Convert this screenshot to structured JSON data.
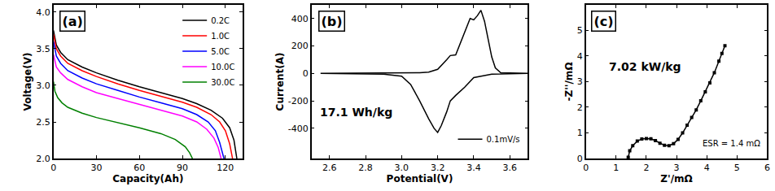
{
  "chart_data": [
    {
      "type": "line",
      "title": "(a)",
      "x_label": "Capacity(Ah)",
      "y_label": "Voltage(V)",
      "xlim": [
        0,
        132
      ],
      "xticks": [
        0,
        30,
        60,
        90,
        120
      ],
      "ylim": [
        2.0,
        4.1
      ],
      "yticks": [
        {
          "value": 2.0,
          "label": "2.0"
        },
        2.5,
        {
          "value": 3.0,
          "label": "3.0"
        },
        3.5,
        {
          "value": 4.0,
          "label": "4.0"
        }
      ],
      "grid": false,
      "legend": "upper right",
      "series": [
        {
          "name": "0.2C",
          "color": "#000000",
          "x": [
            0,
            2,
            5,
            10,
            20,
            30,
            45,
            60,
            75,
            90,
            100,
            110,
            118,
            123,
            126,
            128
          ],
          "values": [
            3.75,
            3.55,
            3.45,
            3.35,
            3.25,
            3.17,
            3.07,
            2.98,
            2.9,
            2.82,
            2.75,
            2.66,
            2.55,
            2.42,
            2.25,
            2.0
          ]
        },
        {
          "name": "1.0C",
          "color": "#ff0000",
          "x": [
            0,
            2,
            5,
            10,
            20,
            30,
            45,
            60,
            75,
            90,
            100,
            110,
            116,
            120,
            123,
            125
          ],
          "values": [
            3.7,
            3.5,
            3.4,
            3.3,
            3.2,
            3.12,
            3.02,
            2.93,
            2.85,
            2.77,
            2.7,
            2.6,
            2.5,
            2.38,
            2.2,
            2.0
          ]
        },
        {
          "name": "5.0C",
          "color": "#0000ff",
          "x": [
            0,
            2,
            5,
            10,
            20,
            30,
            45,
            60,
            75,
            90,
            100,
            108,
            113,
            116,
            119
          ],
          "values": [
            3.6,
            3.4,
            3.3,
            3.2,
            3.1,
            3.02,
            2.93,
            2.84,
            2.76,
            2.68,
            2.6,
            2.5,
            2.38,
            2.22,
            2.0
          ]
        },
        {
          "name": "10.0C",
          "color": "#ff00ff",
          "x": [
            0,
            2,
            5,
            10,
            20,
            30,
            45,
            60,
            75,
            90,
            100,
            107,
            112,
            115,
            117
          ],
          "values": [
            3.42,
            3.25,
            3.17,
            3.08,
            2.98,
            2.9,
            2.82,
            2.74,
            2.66,
            2.58,
            2.5,
            2.4,
            2.28,
            2.15,
            2.0
          ]
        },
        {
          "name": "30.0C",
          "color": "#008000",
          "x": [
            0,
            1,
            3,
            6,
            10,
            20,
            30,
            45,
            60,
            75,
            85,
            92,
            95,
            97
          ],
          "values": [
            3.05,
            2.92,
            2.83,
            2.76,
            2.7,
            2.62,
            2.56,
            2.49,
            2.42,
            2.34,
            2.26,
            2.16,
            2.08,
            2.0
          ]
        }
      ]
    },
    {
      "type": "line",
      "title": "(b)",
      "x_label": "Potential(V)",
      "y_label": "Current(A)",
      "xlim": [
        2.5,
        3.7
      ],
      "xticks": [
        2.6,
        2.8,
        {
          "value": 3.0,
          "label": "3.0"
        },
        3.2,
        3.4,
        3.6
      ],
      "ylim": [
        -620,
        500
      ],
      "yticks": [
        -400,
        -200,
        0,
        200,
        400
      ],
      "grid": false,
      "legend": "lower right",
      "annotations": [
        "17.1 Wh/kg"
      ],
      "series": [
        {
          "name": "0.1mV/s",
          "color": "#000000",
          "x": [
            2.55,
            2.9,
            3.1,
            3.15,
            3.2,
            3.25,
            3.27,
            3.3,
            3.32,
            3.35,
            3.38,
            3.4,
            3.42,
            3.44,
            3.46,
            3.48,
            3.5,
            3.52,
            3.55,
            3.7,
            3.5,
            3.4,
            3.35,
            3.3,
            3.27,
            3.25,
            3.22,
            3.2,
            3.18,
            3.15,
            3.1,
            3.05,
            3.0,
            2.9,
            2.55
          ],
          "values": [
            0,
            2,
            5,
            10,
            30,
            100,
            130,
            135,
            200,
            300,
            400,
            390,
            420,
            460,
            380,
            250,
            120,
            40,
            5,
            0,
            -5,
            -30,
            -100,
            -160,
            -200,
            -280,
            -380,
            -430,
            -400,
            -330,
            -200,
            -80,
            -20,
            -5,
            0
          ]
        }
      ]
    },
    {
      "type": "line",
      "title": "(c)",
      "x_label": "Z'/mΩ",
      "y_label": "-Z''/mΩ",
      "xlim": [
        0,
        6
      ],
      "xticks": [
        0,
        1,
        2,
        3,
        4,
        5,
        6
      ],
      "ylim": [
        0,
        6
      ],
      "yticks": [
        0,
        1,
        2,
        3,
        4,
        5,
        6
      ],
      "grid": false,
      "annotations": [
        "7.02 kW/kg",
        "ESR = 1.4 mΩ"
      ],
      "series": [
        {
          "color": "#000000",
          "marker": "square",
          "line_style": "solid",
          "x": [
            1.4,
            1.45,
            1.55,
            1.7,
            1.85,
            2.0,
            2.15,
            2.3,
            2.45,
            2.6,
            2.75,
            2.9,
            3.05,
            3.2,
            3.35,
            3.5,
            3.65,
            3.8,
            3.95,
            4.1,
            4.25,
            4.4,
            4.5,
            4.6
          ],
          "values": [
            0.05,
            0.3,
            0.5,
            0.68,
            0.76,
            0.78,
            0.77,
            0.7,
            0.6,
            0.52,
            0.5,
            0.58,
            0.75,
            1.0,
            1.3,
            1.6,
            1.9,
            2.25,
            2.6,
            2.95,
            3.35,
            3.8,
            4.1,
            4.4
          ]
        }
      ]
    }
  ]
}
